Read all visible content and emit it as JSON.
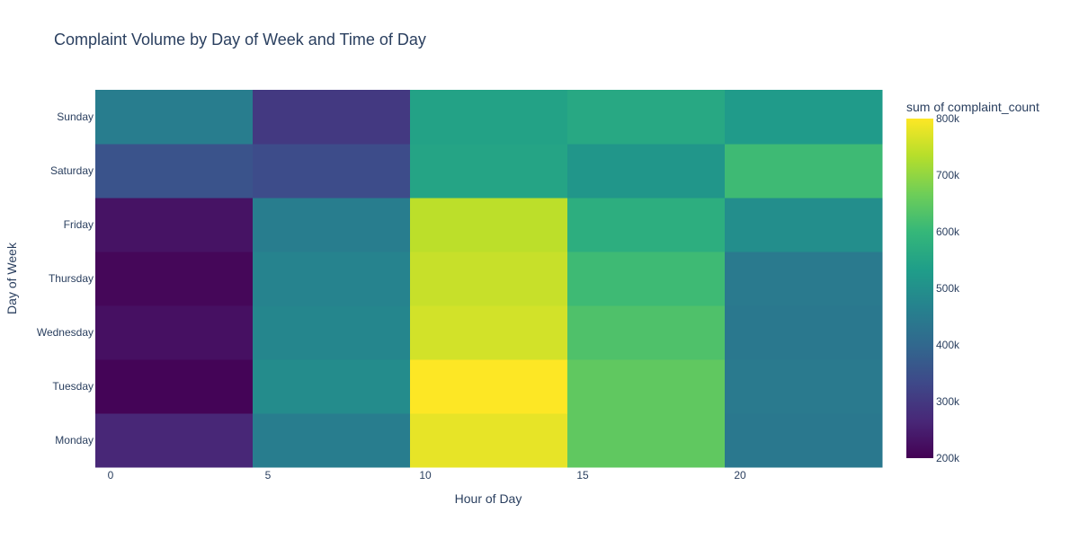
{
  "chart_data": {
    "type": "heatmap",
    "title": "Complaint Volume by Day of Week and Time of Day",
    "xlabel": "Hour of Day",
    "ylabel": "Day of Week",
    "x_bins": [
      0,
      5,
      10,
      15,
      20,
      25
    ],
    "x_ticks": [
      0,
      5,
      10,
      15,
      20
    ],
    "x_tick_labels": [
      "0",
      "5",
      "10",
      "15",
      "20"
    ],
    "categories_y": [
      "Monday",
      "Tuesday",
      "Wednesday",
      "Thursday",
      "Friday",
      "Saturday",
      "Sunday"
    ],
    "values": [
      [
        265000,
        455000,
        780000,
        650000,
        440000
      ],
      [
        205000,
        490000,
        800000,
        650000,
        445000
      ],
      [
        225000,
        475000,
        760000,
        630000,
        440000
      ],
      [
        210000,
        470000,
        750000,
        610000,
        445000
      ],
      [
        230000,
        455000,
        740000,
        575000,
        495000
      ],
      [
        355000,
        340000,
        550000,
        515000,
        610000
      ],
      [
        455000,
        300000,
        545000,
        560000,
        525000
      ]
    ],
    "colorbar": {
      "title": "sum of complaint_count",
      "range": [
        200000,
        800000
      ],
      "ticks": [
        200000,
        300000,
        400000,
        500000,
        600000,
        700000,
        800000
      ],
      "tick_labels": [
        "200k",
        "300k",
        "400k",
        "500k",
        "600k",
        "700k",
        "800k"
      ]
    },
    "colorscale": [
      "#440154",
      "#482878",
      "#3e4989",
      "#31688e",
      "#26828e",
      "#1f9e89",
      "#35b779",
      "#6ece58",
      "#b5de2b",
      "#fde725"
    ],
    "grid": false,
    "legend": "right"
  }
}
